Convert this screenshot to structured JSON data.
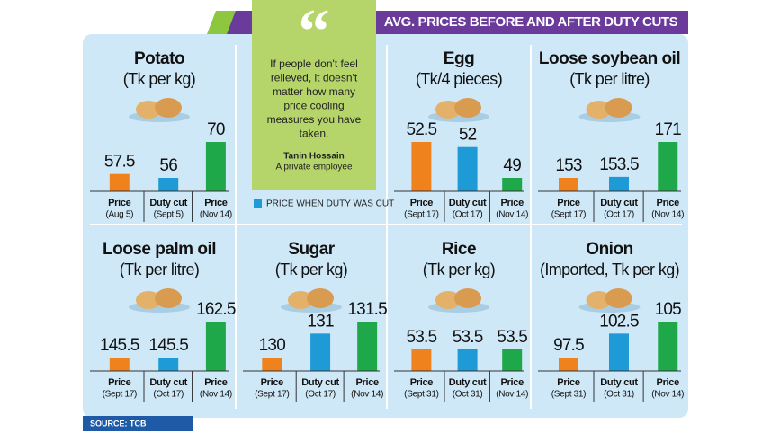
{
  "title": "AVG. PRICES BEFORE AND AFTER DUTY CUTS",
  "quote": {
    "lines": [
      "If people don't feel",
      "relieved, it doesn't",
      "matter how many",
      "price cooling",
      "measures you have",
      "taken."
    ],
    "author": "Tanin Hossain",
    "role": "A private employee"
  },
  "legend": "PRICE WHEN DUTY WAS CUT",
  "source": "SOURCE: TCB",
  "chart_data": [
    {
      "type": "bar",
      "title": "Potato",
      "subtitle": "(Tk per kg)",
      "categories": [
        "Price",
        "Duty cut",
        "Price"
      ],
      "dates": [
        "(Aug 5)",
        "(Sept 5)",
        "(Nov 14)"
      ],
      "values": [
        57.5,
        56,
        70
      ],
      "colors": [
        "#f0821e",
        "#1e9ad6",
        "#1ea84a"
      ]
    },
    {
      "type": "bar",
      "title": "Egg",
      "subtitle": "(Tk/4 pieces)",
      "categories": [
        "Price",
        "Duty cut",
        "Price"
      ],
      "dates": [
        "(Sept 17)",
        "(Oct 17)",
        "(Nov 14)"
      ],
      "values": [
        52.5,
        52,
        49
      ],
      "colors": [
        "#f0821e",
        "#1e9ad6",
        "#1ea84a"
      ]
    },
    {
      "type": "bar",
      "title": "Loose soybean oil",
      "subtitle": "(Tk per litre)",
      "categories": [
        "Price",
        "Duty cut",
        "Price"
      ],
      "dates": [
        "(Sept 17)",
        "(Oct 17)",
        "(Nov 14)"
      ],
      "values": [
        153,
        153.5,
        171
      ],
      "colors": [
        "#f0821e",
        "#1e9ad6",
        "#1ea84a"
      ]
    },
    {
      "type": "bar",
      "title": "Loose palm oil",
      "subtitle": "(Tk per litre)",
      "categories": [
        "Price",
        "Duty cut",
        "Price"
      ],
      "dates": [
        "(Sept 17)",
        "(Oct 17)",
        "(Nov 14)"
      ],
      "values": [
        145.5,
        145.5,
        162.5
      ],
      "colors": [
        "#f0821e",
        "#1e9ad6",
        "#1ea84a"
      ]
    },
    {
      "type": "bar",
      "title": "Sugar",
      "subtitle": "(Tk per kg)",
      "categories": [
        "Price",
        "Duty cut",
        "Price"
      ],
      "dates": [
        "(Sept 17)",
        "(Oct 17)",
        "(Nov 14)"
      ],
      "values": [
        130,
        131,
        131.5
      ],
      "colors": [
        "#f0821e",
        "#1e9ad6",
        "#1ea84a"
      ]
    },
    {
      "type": "bar",
      "title": "Rice",
      "subtitle": "(Tk per kg)",
      "categories": [
        "Price",
        "Duty cut",
        "Price"
      ],
      "dates": [
        "(Sept 31)",
        "(Oct 31)",
        "(Nov 14)"
      ],
      "values": [
        53.5,
        53.5,
        53.5
      ],
      "colors": [
        "#f0821e",
        "#1e9ad6",
        "#1ea84a"
      ]
    },
    {
      "type": "bar",
      "title": "Onion",
      "subtitle": "(Imported, Tk per kg)",
      "categories": [
        "Price",
        "Duty cut",
        "Price"
      ],
      "dates": [
        "(Sept 31)",
        "(Oct 31)",
        "(Nov 14)"
      ],
      "values": [
        97.5,
        102.5,
        105
      ],
      "colors": [
        "#f0821e",
        "#1e9ad6",
        "#1ea84a"
      ]
    }
  ]
}
